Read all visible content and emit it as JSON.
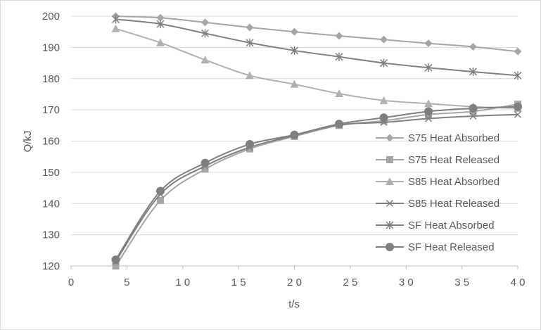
{
  "chart_data": {
    "type": "line",
    "xlabel": "t/s",
    "ylabel": "Q/kJ",
    "xlim": [
      0,
      40
    ],
    "ylim": [
      120,
      200
    ],
    "xticks": [
      0,
      5,
      10,
      15,
      20,
      25,
      30,
      35,
      40
    ],
    "xtick_labels": [
      "0",
      "5",
      "1 0",
      "1 5",
      "2 0",
      "2 5",
      "3 0",
      "3 5",
      "4 0"
    ],
    "yticks": [
      120,
      130,
      140,
      150,
      160,
      170,
      180,
      190,
      200
    ],
    "ytick_labels": [
      "120",
      "130",
      "140",
      "150",
      "160",
      "170",
      "180",
      "190",
      "200"
    ],
    "grid": "horizontal",
    "legend_position": "right",
    "x": [
      4,
      8,
      12,
      16,
      20,
      24,
      28,
      32,
      36,
      40
    ],
    "series": [
      {
        "name": "S75 Heat Absorbed",
        "marker": "diamond",
        "color": "#a5a5a5",
        "values": [
          200,
          199.5,
          198,
          196.4,
          195,
          193.7,
          192.5,
          191.3,
          190.2,
          188.7
        ]
      },
      {
        "name": "S75 Heat Released",
        "marker": "square",
        "color": "#a5a5a5",
        "values": [
          120,
          141,
          151,
          157.5,
          161.5,
          165,
          166.5,
          168.5,
          169.5,
          171.8
        ]
      },
      {
        "name": "S85 Heat Absorbed",
        "marker": "triangle",
        "color": "#b0b0b0",
        "values": [
          196,
          191.5,
          186,
          181,
          178.2,
          175.2,
          173,
          172,
          171,
          170.5
        ]
      },
      {
        "name": "S85 Heat Released",
        "marker": "x",
        "color": "#7f7f7f",
        "values": [
          121.5,
          143,
          152,
          158,
          161.8,
          165.2,
          166,
          167.2,
          168,
          168.5
        ]
      },
      {
        "name": "SF Heat Absorbed",
        "marker": "star",
        "color": "#7f7f7f",
        "values": [
          199,
          197.5,
          194.5,
          191.5,
          189,
          187,
          185,
          183.5,
          182.2,
          181
        ]
      },
      {
        "name": "SF Heat Released",
        "marker": "circle",
        "color": "#7f7f7f",
        "values": [
          122,
          144,
          153,
          159,
          162,
          165.5,
          167.5,
          169.5,
          170.5,
          171
        ]
      }
    ]
  }
}
